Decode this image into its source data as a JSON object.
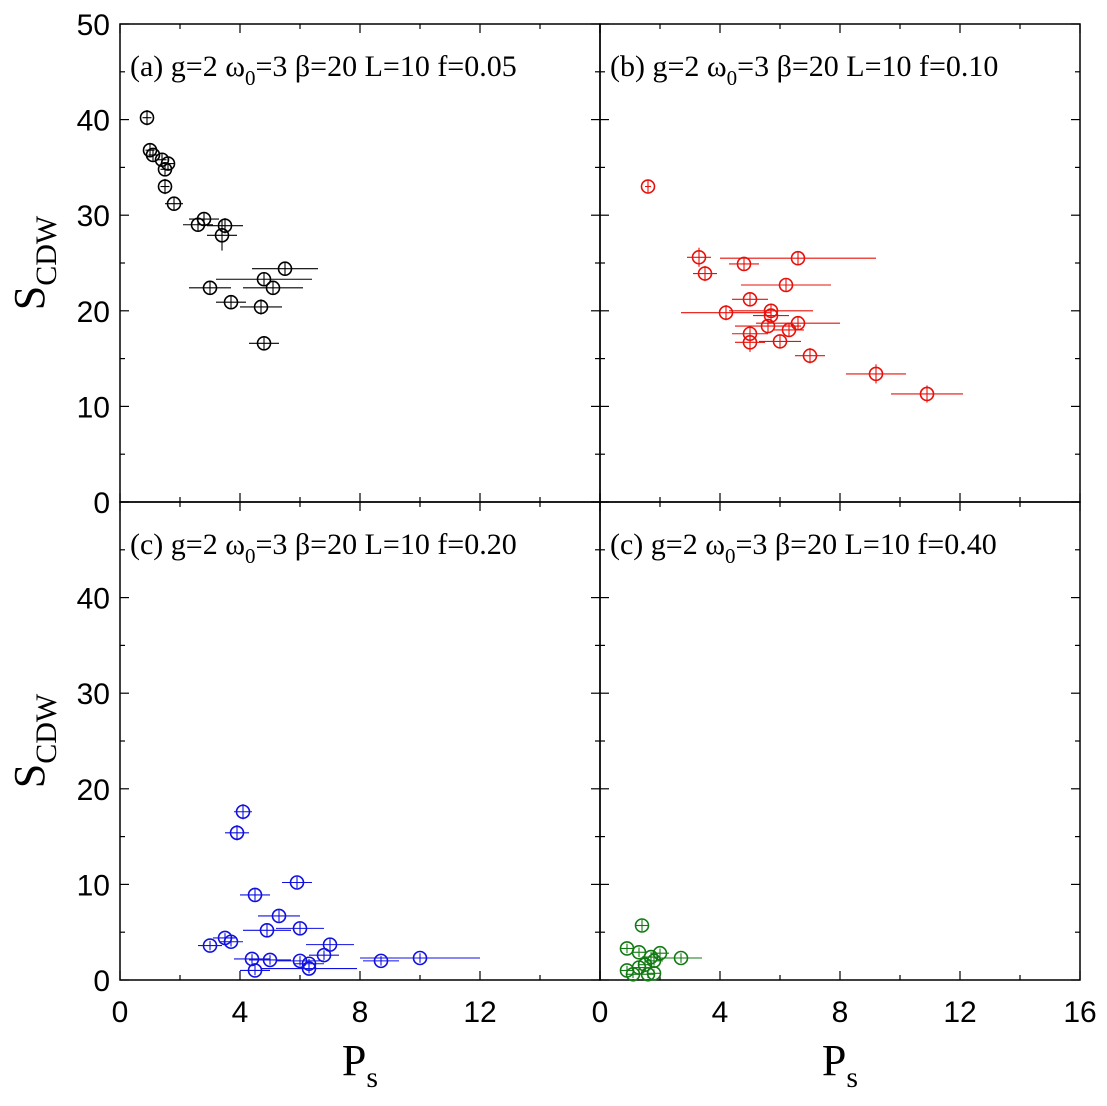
{
  "chart_data": {
    "type": "scatter",
    "x_axis": {
      "label_main": "P",
      "label_sub": "s",
      "range": [
        0,
        16
      ],
      "tick_labels_left": [
        "0",
        "4",
        "8",
        "12"
      ],
      "tick_labels_right": [
        "0",
        "4",
        "8",
        "12",
        "16"
      ],
      "tick_values": [
        0,
        4,
        8,
        12,
        16
      ],
      "minor_step": 2
    },
    "y_axis": {
      "label_main": "S",
      "label_sub": "CDW",
      "range": [
        0,
        50
      ],
      "tick_labels_top": [
        "0",
        "10",
        "20",
        "30",
        "40",
        "50"
      ],
      "tick_labels_bottom": [
        "0",
        "10",
        "20",
        "30",
        "40"
      ],
      "tick_values": [
        0,
        10,
        20,
        30,
        40,
        50
      ],
      "minor_step": 5
    },
    "panels": [
      {
        "id": "a",
        "label": {
          "prefix": "(a) g=2 ω",
          "sub": "0",
          "suffix": "=3 β=20 L=10 f=0.05"
        },
        "color": "#000000",
        "points": [
          [
            0.9,
            40.2,
            0.15,
            0.8
          ],
          [
            1.0,
            36.8,
            0.15,
            0.7
          ],
          [
            1.1,
            36.3,
            0.15,
            0.6
          ],
          [
            1.4,
            35.8,
            0.15,
            0.6
          ],
          [
            1.5,
            34.8,
            0.15,
            0.7
          ],
          [
            1.6,
            35.4,
            0.2,
            0.6
          ],
          [
            1.5,
            33.0,
            0.15,
            0.8
          ],
          [
            1.8,
            31.2,
            0.3,
            0.6
          ],
          [
            2.8,
            29.6,
            0.5,
            0.6
          ],
          [
            2.6,
            29.0,
            0.5,
            0.7
          ],
          [
            3.5,
            28.9,
            0.6,
            0.8
          ],
          [
            3.4,
            27.9,
            0.5,
            1.6
          ],
          [
            3.0,
            22.4,
            0.7,
            0.7
          ],
          [
            3.7,
            20.9,
            0.5,
            0.7
          ],
          [
            4.8,
            23.3,
            1.6,
            0.7
          ],
          [
            5.5,
            24.4,
            1.1,
            0.7
          ],
          [
            5.1,
            22.4,
            1.0,
            0.7
          ],
          [
            4.7,
            20.4,
            0.7,
            0.8
          ],
          [
            4.8,
            16.6,
            0.5,
            0.7
          ]
        ]
      },
      {
        "id": "b",
        "label": {
          "prefix": "(b) g=2 ω",
          "sub": "0",
          "suffix": "=3 β=20 L=10 f=0.10"
        },
        "color": "#e8100a",
        "points": [
          [
            1.6,
            33.0,
            0.1,
            0.6
          ],
          [
            3.3,
            25.6,
            0.4,
            1.0
          ],
          [
            3.5,
            23.9,
            0.4,
            0.8
          ],
          [
            4.8,
            24.9,
            0.5,
            0.7
          ],
          [
            6.6,
            25.5,
            2.6,
            0.7
          ],
          [
            6.2,
            22.7,
            1.5,
            0.7
          ],
          [
            5.0,
            21.2,
            0.6,
            0.7
          ],
          [
            4.2,
            19.8,
            1.5,
            0.8
          ],
          [
            5.7,
            20.0,
            1.4,
            0.7
          ],
          [
            5.7,
            19.5,
            0.6,
            0.7
          ],
          [
            5.6,
            18.4,
            1.1,
            0.7
          ],
          [
            6.6,
            18.7,
            1.4,
            0.7
          ],
          [
            6.3,
            18.0,
            0.5,
            0.7
          ],
          [
            5.0,
            17.6,
            0.6,
            0.8
          ],
          [
            5.0,
            16.7,
            0.5,
            1.0
          ],
          [
            6.0,
            16.8,
            0.7,
            0.7
          ],
          [
            7.0,
            15.3,
            0.5,
            0.8
          ],
          [
            9.2,
            13.4,
            1.0,
            1.0
          ],
          [
            10.9,
            11.3,
            1.2,
            0.9
          ]
        ]
      },
      {
        "id": "c",
        "label": {
          "prefix": "(c) g=2 ω",
          "sub": "0",
          "suffix": "=3 β=20 L=10 f=0.20"
        },
        "color": "#1010e0",
        "points": [
          [
            4.1,
            17.6,
            0.3,
            0.8
          ],
          [
            3.9,
            15.4,
            0.4,
            0.8
          ],
          [
            5.9,
            10.2,
            0.5,
            0.6
          ],
          [
            4.5,
            8.9,
            0.5,
            0.6
          ],
          [
            5.3,
            6.7,
            0.7,
            0.6
          ],
          [
            4.9,
            5.2,
            0.8,
            0.6
          ],
          [
            6.0,
            5.4,
            0.8,
            0.6
          ],
          [
            3.5,
            4.4,
            0.4,
            0.5
          ],
          [
            3.7,
            4.0,
            0.4,
            0.5
          ],
          [
            3.0,
            3.6,
            0.4,
            0.5
          ],
          [
            7.0,
            3.7,
            0.8,
            0.6
          ],
          [
            6.8,
            2.6,
            0.5,
            0.5
          ],
          [
            4.4,
            2.2,
            0.6,
            0.5
          ],
          [
            5.0,
            2.1,
            0.7,
            0.5
          ],
          [
            6.0,
            2.0,
            0.8,
            0.5
          ],
          [
            6.3,
            1.7,
            0.5,
            0.5
          ],
          [
            8.7,
            2.0,
            0.6,
            0.5
          ],
          [
            10.0,
            2.3,
            2.0,
            0.5
          ],
          [
            6.3,
            1.2,
            1.6,
            0.5
          ],
          [
            4.5,
            1.0,
            0.5,
            0.5
          ]
        ]
      },
      {
        "id": "d",
        "label": {
          "prefix": "(c) g=2 ω",
          "sub": "0",
          "suffix": "=3 β=20 L=10 f=0.40"
        },
        "color": "#127a12",
        "points": [
          [
            1.4,
            5.7,
            0.2,
            0.6
          ],
          [
            0.9,
            3.3,
            0.2,
            0.5
          ],
          [
            1.3,
            2.9,
            0.2,
            0.5
          ],
          [
            2.0,
            2.8,
            0.3,
            0.5
          ],
          [
            2.7,
            2.3,
            0.7,
            0.5
          ],
          [
            1.7,
            2.4,
            0.3,
            0.5
          ],
          [
            1.8,
            2.0,
            0.3,
            0.5
          ],
          [
            1.5,
            1.6,
            0.2,
            0.5
          ],
          [
            1.3,
            1.3,
            0.2,
            0.5
          ],
          [
            0.9,
            1.0,
            0.2,
            0.5
          ],
          [
            1.1,
            0.6,
            0.2,
            0.4
          ],
          [
            1.6,
            0.6,
            0.2,
            0.4
          ],
          [
            1.8,
            0.7,
            0.2,
            0.4
          ]
        ]
      }
    ]
  }
}
